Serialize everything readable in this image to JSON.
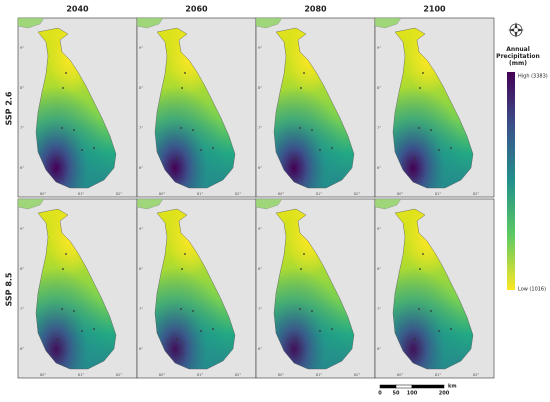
{
  "columns": [
    "2040",
    "2060",
    "2080",
    "2100"
  ],
  "rows": [
    "SSP 2.6",
    "SSP 8.5"
  ],
  "lon_ticks": [
    "80°",
    "81°",
    "82°"
  ],
  "lat_ticks": [
    "6°",
    "7°",
    "8°",
    "9°"
  ],
  "legend": {
    "title": "Annual Precipitation (mm)",
    "high_label": "High (3383)",
    "low_label": "Low (1016)"
  },
  "scale_bar": {
    "labels": [
      "0",
      "50",
      "100",
      "200"
    ],
    "unit": "km"
  }
}
